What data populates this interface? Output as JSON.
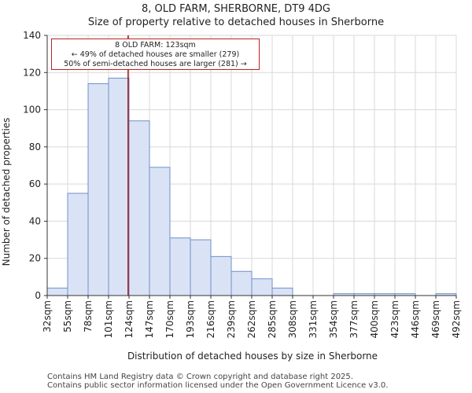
{
  "header": {
    "title_line1": "8, OLD FARM, SHERBORNE, DT9 4DG",
    "title_line2": "Size of property relative to detached houses in Sherborne"
  },
  "annotation": {
    "line1": "8 OLD FARM: 123sqm",
    "line2": "← 49% of detached houses are smaller (279)",
    "line3": "50% of semi-detached houses are larger (281) →"
  },
  "footer": {
    "line1": "Contains HM Land Registry data © Crown copyright and database right 2025.",
    "line2": "Contains public sector information licensed under the Open Government Licence v3.0."
  },
  "colors": {
    "bar_fill": "#dae3f5",
    "bar_stroke": "#6d8fcb",
    "marker": "#aa1111",
    "grid": "#d9d9d9"
  },
  "chart_data": {
    "type": "bar",
    "title": "Size of property relative to detached houses in Sherborne",
    "xlabel": "Distribution of detached houses by size in Sherborne",
    "ylabel": "Number of detached properties",
    "ylim": [
      0,
      140
    ],
    "yticks": [
      0,
      20,
      40,
      60,
      80,
      100,
      120,
      140
    ],
    "bin_edges": [
      "32sqm",
      "55sqm",
      "78sqm",
      "101sqm",
      "124sqm",
      "147sqm",
      "170sqm",
      "193sqm",
      "216sqm",
      "239sqm",
      "262sqm",
      "285sqm",
      "308sqm",
      "331sqm",
      "354sqm",
      "377sqm",
      "400sqm",
      "423sqm",
      "446sqm",
      "469sqm",
      "492sqm"
    ],
    "bin_edge_values": [
      32,
      55,
      78,
      101,
      124,
      147,
      170,
      193,
      216,
      239,
      262,
      285,
      308,
      331,
      354,
      377,
      400,
      423,
      446,
      469,
      492
    ],
    "values": [
      4,
      55,
      114,
      117,
      94,
      69,
      31,
      30,
      21,
      13,
      9,
      4,
      0,
      0,
      1,
      1,
      1,
      1,
      0,
      1
    ],
    "marker_value": 123,
    "grid": true
  }
}
